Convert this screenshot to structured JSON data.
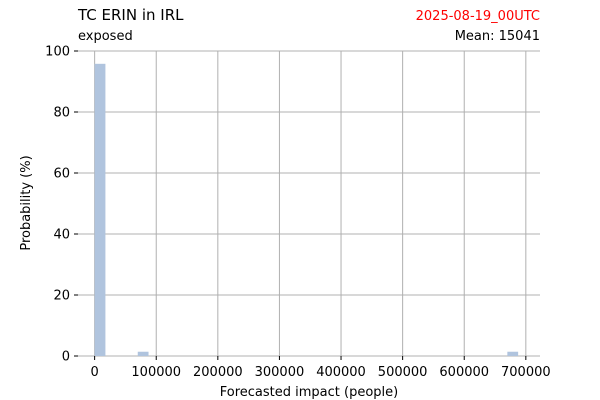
{
  "chart_data": {
    "type": "bar",
    "title": "TC ERIN in IRL",
    "subtitle": "exposed",
    "date_label": "2025-08-19_00UTC",
    "mean_label": "Mean: 15041",
    "xlabel": "Forecasted impact (people)",
    "ylabel": "Probability (%)",
    "xlim": [
      -27000,
      723000
    ],
    "ylim": [
      0,
      100
    ],
    "xticks": [
      0,
      100000,
      200000,
      300000,
      400000,
      500000,
      600000,
      700000
    ],
    "xtick_labels": [
      "0",
      "100000",
      "200000",
      "300000",
      "400000",
      "500000",
      "600000",
      "700000"
    ],
    "yticks": [
      0,
      20,
      40,
      60,
      80,
      100
    ],
    "ytick_labels": [
      "0",
      "20",
      "40",
      "60",
      "80",
      "100"
    ],
    "grid": true,
    "bin_width": 17500,
    "bins": [
      {
        "x_start": 0,
        "x_end": 17500,
        "value": 95.8
      },
      {
        "x_start": 70000,
        "x_end": 87500,
        "value": 1.4
      },
      {
        "x_start": 670000,
        "x_end": 687500,
        "value": 1.4
      }
    ],
    "colors": {
      "bar": "#b0c4de",
      "grid": "#b0b0b0",
      "date_text": "#ff0000",
      "text": "#000000"
    }
  }
}
